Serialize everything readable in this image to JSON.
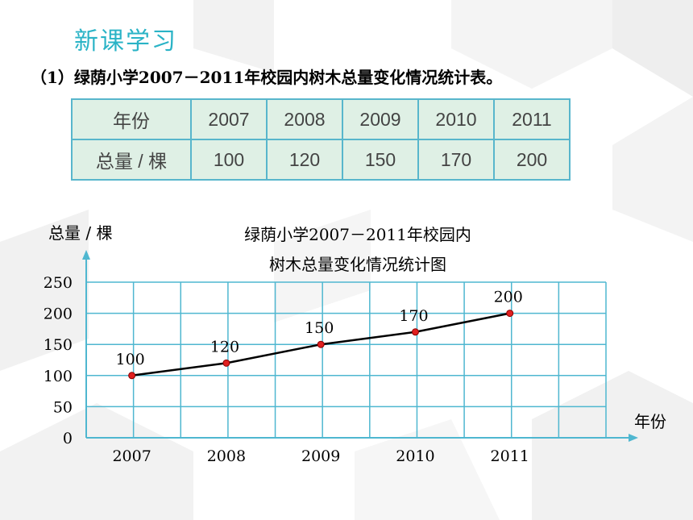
{
  "section_title": "新课学习",
  "subtitle": "（1）绿荫小学2007－2011年校园内树木总量变化情况统计表。",
  "table": {
    "row_headers": [
      "年份",
      "总量 / 棵"
    ],
    "years": [
      "2007",
      "2008",
      "2009",
      "2010",
      "2011"
    ],
    "values": [
      "100",
      "120",
      "150",
      "170",
      "200"
    ]
  },
  "chart_data": {
    "type": "line",
    "title_line1": "绿荫小学2007－2011年校园内",
    "title_line2": "树木总量变化情况统计图",
    "ylabel": "总量 / 棵",
    "xlabel": "年份",
    "categories": [
      "2007",
      "2008",
      "2009",
      "2010",
      "2011"
    ],
    "values": [
      100,
      120,
      150,
      170,
      200
    ],
    "point_labels": [
      "100",
      "120",
      "150",
      "170",
      "200"
    ],
    "y_ticks": [
      "0",
      "50",
      "100",
      "150",
      "200",
      "250"
    ],
    "ylim": [
      0,
      250
    ],
    "grid": true,
    "colors": {
      "grid": "#4fb7d0",
      "line": "#000000",
      "marker": "#e02020"
    }
  }
}
